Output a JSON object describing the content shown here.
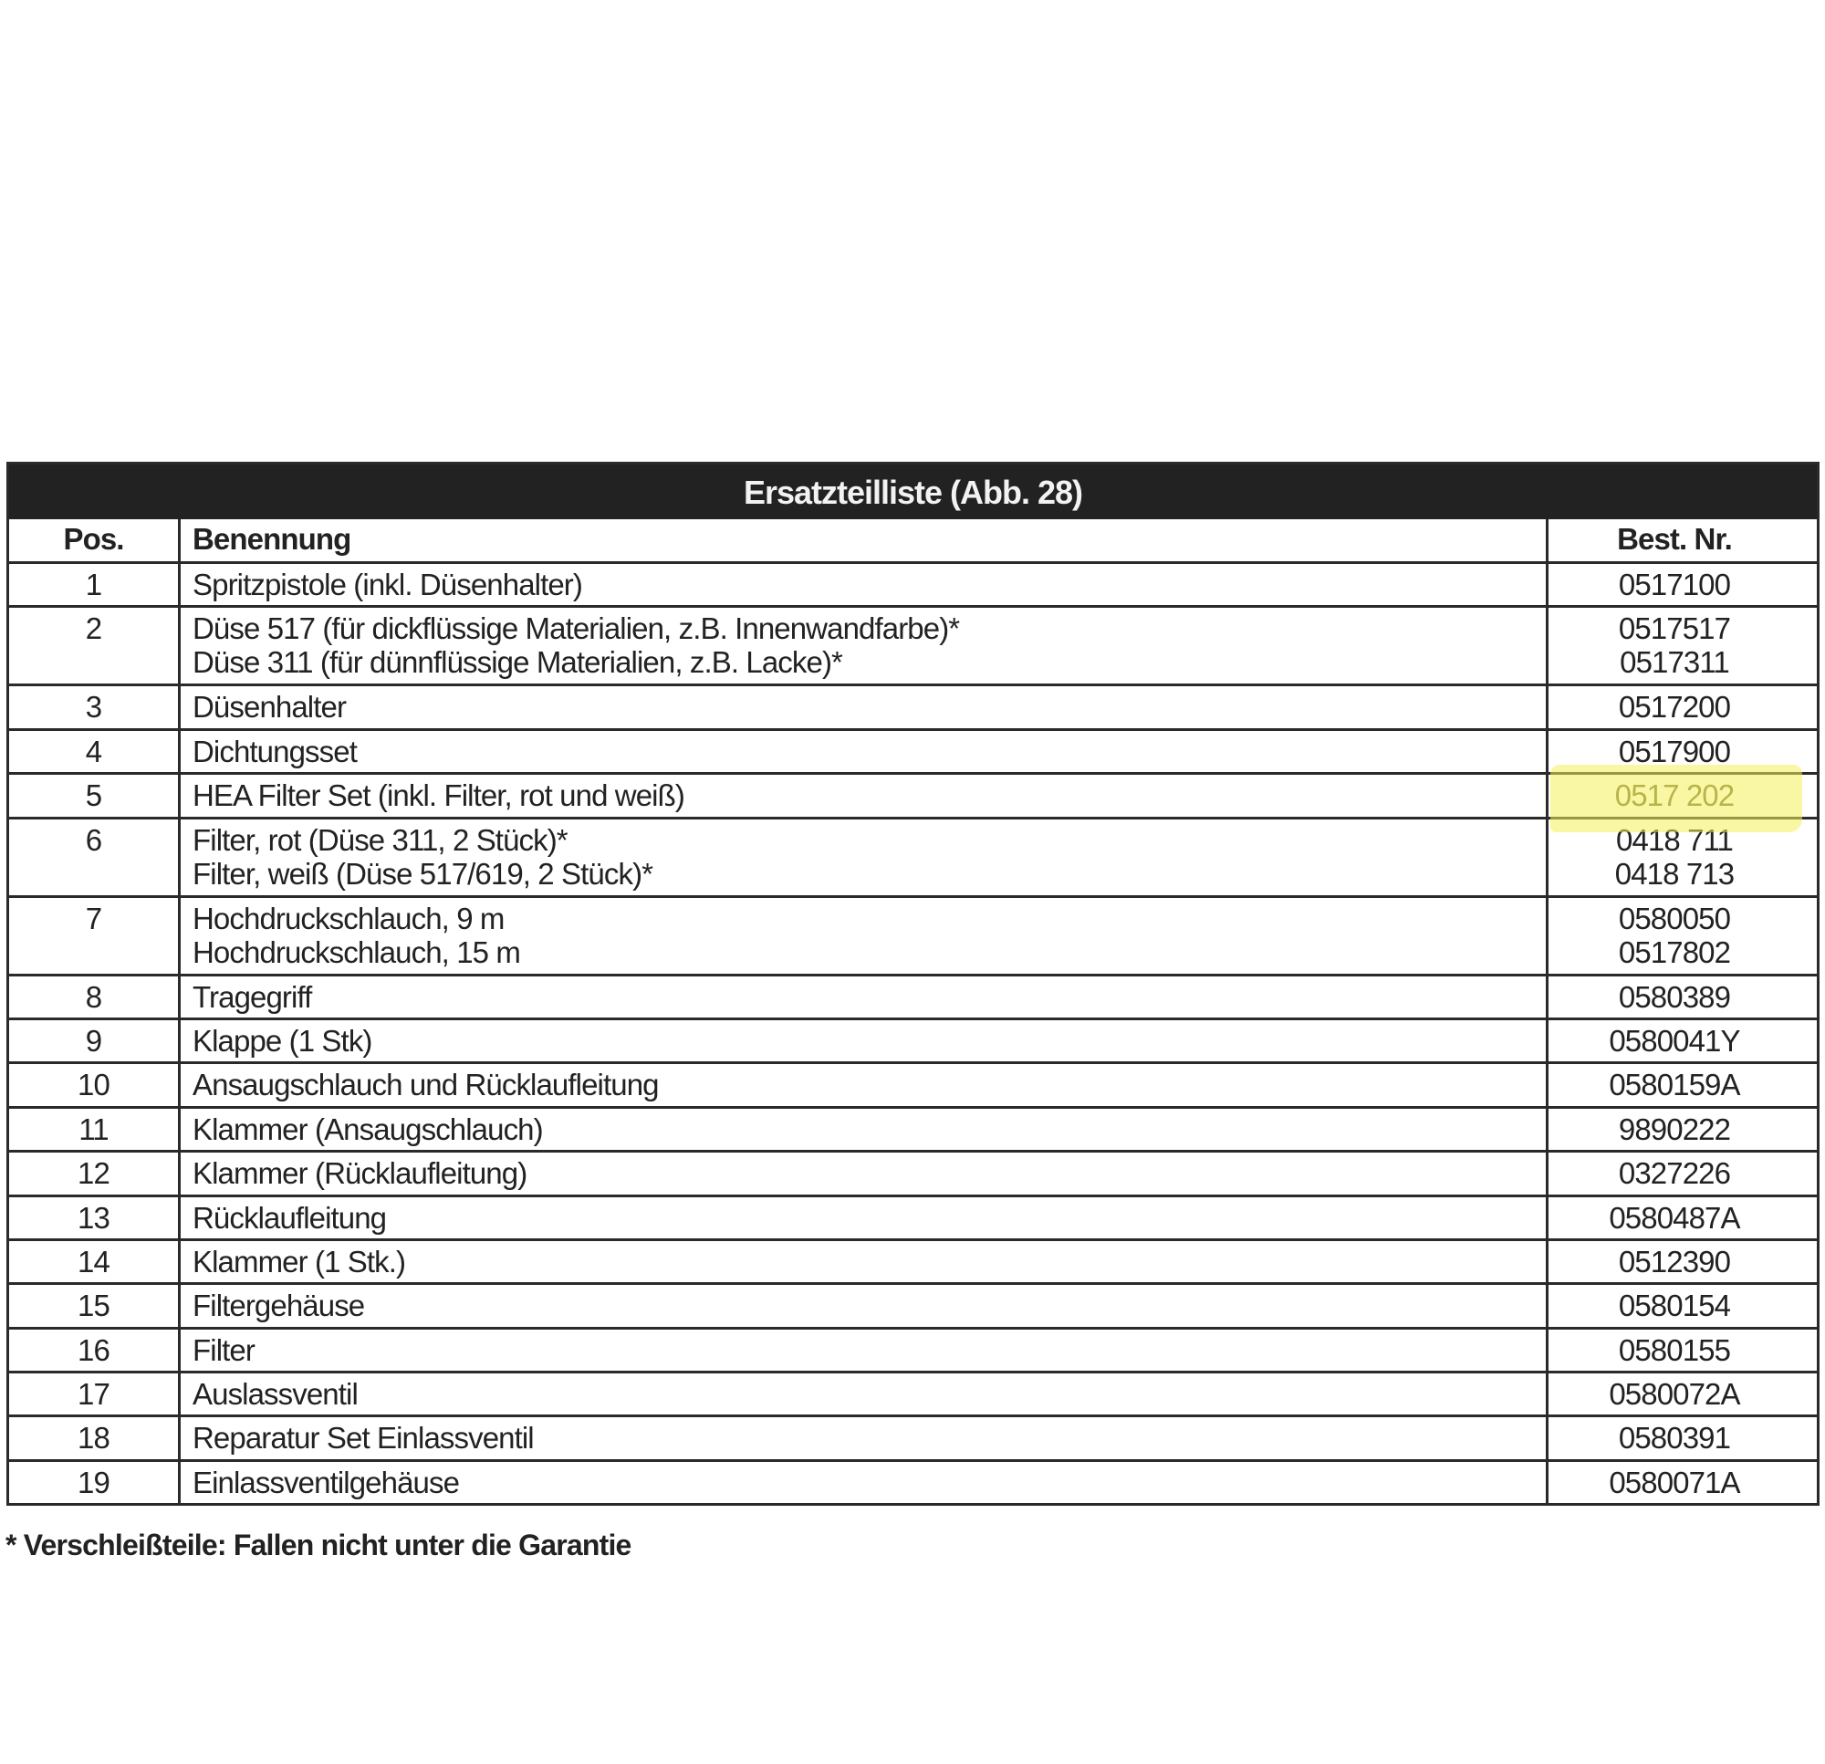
{
  "table": {
    "title": "Ersatzteilliste (Abb. 28)",
    "headers": {
      "pos": "Pos.",
      "name": "Benennung",
      "best": "Best. Nr."
    },
    "rows": [
      {
        "pos": "1",
        "names": [
          "Spritzpistole (inkl. Düsenhalter)"
        ],
        "numbers": [
          "0517100"
        ]
      },
      {
        "pos": "2",
        "names": [
          "Düse 517 (für dickflüssige Materialien, z.B. Innenwandfarbe)*",
          "Düse 311 (für dünnflüssige Materialien, z.B. Lacke)*"
        ],
        "numbers": [
          "0517517",
          "0517311"
        ]
      },
      {
        "pos": "3",
        "names": [
          "Düsenhalter"
        ],
        "numbers": [
          "0517200"
        ]
      },
      {
        "pos": "4",
        "names": [
          "Dichtungsset"
        ],
        "numbers": [
          "0517900"
        ]
      },
      {
        "pos": "5",
        "names": [
          "HEA Filter Set (inkl. Filter, rot und weiß)"
        ],
        "numbers": [
          "0517 202"
        ],
        "highlighted": true
      },
      {
        "pos": "6",
        "names": [
          "Filter, rot (Düse 311, 2 Stück)*",
          "Filter, weiß (Düse 517/619, 2 Stück)*"
        ],
        "numbers": [
          "0418 711",
          "0418 713"
        ]
      },
      {
        "pos": "7",
        "names": [
          "Hochdruckschlauch, 9 m",
          "Hochdruckschlauch, 15 m"
        ],
        "numbers": [
          "0580050",
          "0517802"
        ]
      },
      {
        "pos": "8",
        "names": [
          "Tragegriff"
        ],
        "numbers": [
          "0580389"
        ]
      },
      {
        "pos": "9",
        "names": [
          "Klappe (1 Stk)"
        ],
        "numbers": [
          "0580041Y"
        ]
      },
      {
        "pos": "10",
        "names": [
          "Ansaugschlauch und Rücklaufleitung"
        ],
        "numbers": [
          "0580159A"
        ]
      },
      {
        "pos": "11",
        "names": [
          "Klammer (Ansaugschlauch)"
        ],
        "numbers": [
          "9890222"
        ]
      },
      {
        "pos": "12",
        "names": [
          "Klammer (Rücklaufleitung)"
        ],
        "numbers": [
          "0327226"
        ]
      },
      {
        "pos": "13",
        "names": [
          "Rücklaufleitung"
        ],
        "numbers": [
          "0580487A"
        ]
      },
      {
        "pos": "14",
        "names": [
          "Klammer (1 Stk.)"
        ],
        "numbers": [
          "0512390"
        ]
      },
      {
        "pos": "15",
        "names": [
          "Filtergehäuse"
        ],
        "numbers": [
          "0580154"
        ]
      },
      {
        "pos": "16",
        "names": [
          "Filter"
        ],
        "numbers": [
          "0580155"
        ]
      },
      {
        "pos": "17",
        "names": [
          "Auslassventil"
        ],
        "numbers": [
          "0580072A"
        ]
      },
      {
        "pos": "18",
        "names": [
          "Reparatur Set Einlassventil"
        ],
        "numbers": [
          "0580391"
        ]
      },
      {
        "pos": "19",
        "names": [
          "Einlassventilgehäuse"
        ],
        "numbers": [
          "0580071A"
        ]
      }
    ]
  },
  "footnote": "* Verschleißteile: Fallen nicht unter die Garantie",
  "colors": {
    "highlight": "#f5f05a",
    "header_bg": "#222222",
    "text": "#222222",
    "highlighted_text": "#6b6a3a"
  }
}
